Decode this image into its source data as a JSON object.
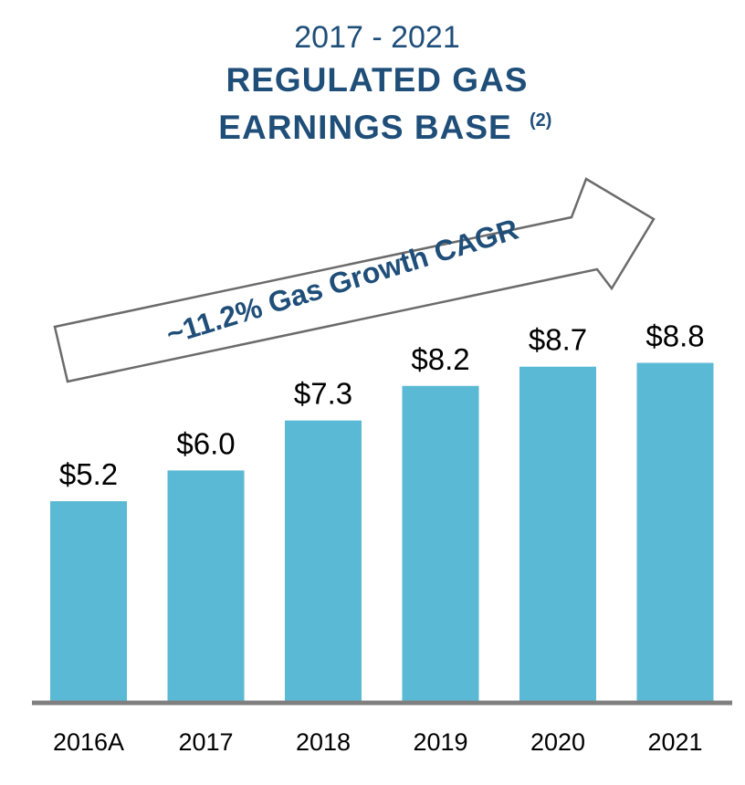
{
  "title": {
    "year_range": "2017 - 2021",
    "line1": "REGULATED GAS",
    "line2": "EARNINGS BASE",
    "superscript": "(2)"
  },
  "arrow_label": "~11.2% Gas Growth CAGR",
  "colors": {
    "bar": "#5ab9d4",
    "title": "#1f4e79",
    "axis": "#7f7f7f",
    "arrow_stroke": "#6b6b6b"
  },
  "chart_data": {
    "type": "bar",
    "title": "2017 - 2021 REGULATED GAS EARNINGS BASE(2)",
    "categories": [
      "2016A",
      "2017",
      "2018",
      "2019",
      "2020",
      "2021"
    ],
    "values": [
      5.2,
      6.0,
      7.3,
      8.2,
      8.7,
      8.8
    ],
    "labels": [
      "$5.2",
      "$6.0",
      "$7.3",
      "$8.2",
      "$8.7",
      "$8.8"
    ],
    "annotation": "~11.2% Gas Growth CAGR",
    "xlabel": "",
    "ylabel": "",
    "ylim": [
      0,
      13
    ],
    "grid": false,
    "legend": "none"
  }
}
